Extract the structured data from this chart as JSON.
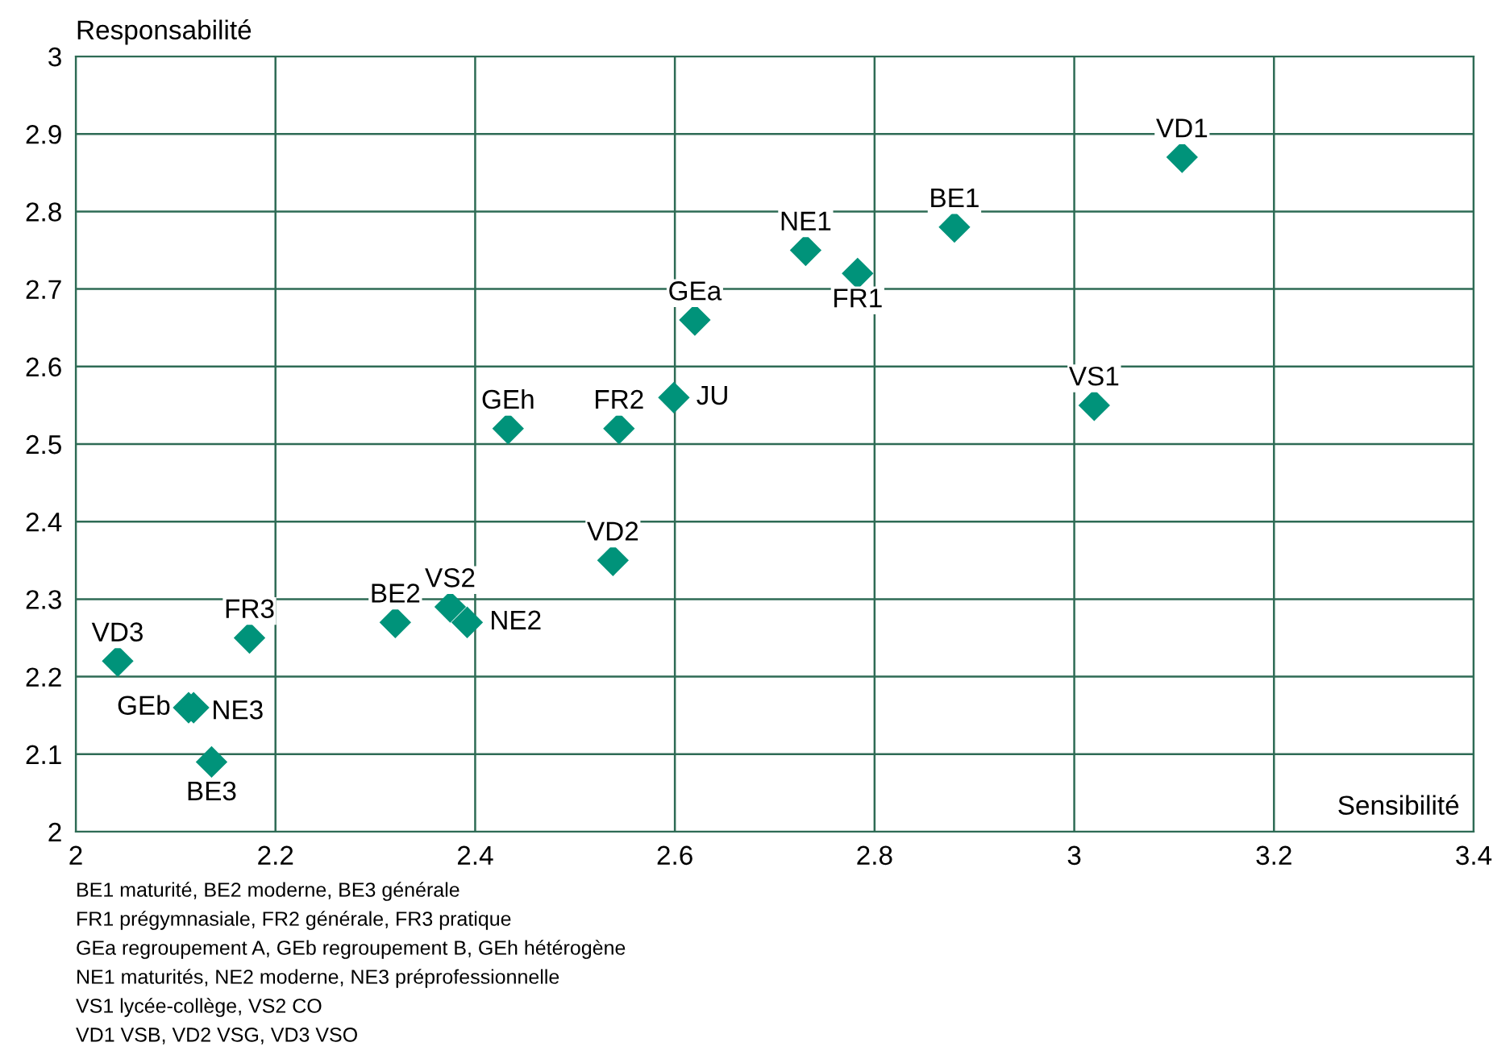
{
  "chart_data": {
    "type": "scatter",
    "xlabel": "Sensibilité",
    "ylabel": "Responsabilité",
    "series": [
      {
        "color": "#00937a",
        "x": [
          3.108,
          2.88,
          2.731,
          2.783,
          2.62,
          3.02,
          2.599,
          2.544,
          2.433,
          2.538,
          2.375,
          2.392,
          2.32,
          2.174,
          2.042,
          2.113,
          2.118,
          2.136
        ],
        "values": [
          2.87,
          2.78,
          2.75,
          2.72,
          2.66,
          2.55,
          2.56,
          2.52,
          2.52,
          2.35,
          2.29,
          2.27,
          2.27,
          2.25,
          2.22,
          2.16,
          2.16,
          2.09
        ]
      }
    ],
    "annotations": [
      {
        "text": "VD1",
        "x": 3.108,
        "y": 2.87
      },
      {
        "text": "BE1",
        "x": 2.88,
        "y": 2.78
      },
      {
        "text": "NE1",
        "x": 2.731,
        "y": 2.75
      },
      {
        "text": "FR1",
        "x": 2.783,
        "y": 2.72
      },
      {
        "text": "GEa",
        "x": 2.62,
        "y": 2.66
      },
      {
        "text": "VS1",
        "x": 3.02,
        "y": 2.55
      },
      {
        "text": "JU",
        "x": 2.599,
        "y": 2.56
      },
      {
        "text": "FR2",
        "x": 2.544,
        "y": 2.52
      },
      {
        "text": "GEh",
        "x": 2.433,
        "y": 2.52
      },
      {
        "text": "VD2",
        "x": 2.538,
        "y": 2.35
      },
      {
        "text": "VS2",
        "x": 2.375,
        "y": 2.29
      },
      {
        "text": "NE2",
        "x": 2.392,
        "y": 2.27
      },
      {
        "text": "BE2",
        "x": 2.32,
        "y": 2.27
      },
      {
        "text": "FR3",
        "x": 2.174,
        "y": 2.25
      },
      {
        "text": "VD3",
        "x": 2.042,
        "y": 2.22
      },
      {
        "text": "GEb",
        "x": 2.113,
        "y": 2.16
      },
      {
        "text": "NE3",
        "x": 2.118,
        "y": 2.16
      },
      {
        "text": "BE3",
        "x": 2.136,
        "y": 2.09
      },
      "BE1 maturité, BE2 moderne, BE3 générale",
      "FR1 prégymnasiale, FR2 générale, FR3 pratique",
      "GEa regroupement A, GEb regroupement B, GEh hétérogène",
      "NE1 maturités, NE2 moderne, NE3 préprofessionnelle",
      "VS1 lycée-collège, VS2 CO",
      "VD1 VSB, VD2 VSG, VD3 VSO"
    ],
    "xlim": [
      2,
      3.4
    ],
    "xticks": [
      2,
      2.2,
      2.4,
      2.6,
      2.8,
      3,
      3.2,
      3.4
    ],
    "ylim": [
      2,
      3
    ],
    "yticks": [
      2,
      2.1,
      2.2,
      2.3,
      2.4,
      2.5,
      2.6,
      2.7,
      2.8,
      2.9,
      3
    ],
    "grid": true,
    "marker": "diamond",
    "legend": false
  }
}
